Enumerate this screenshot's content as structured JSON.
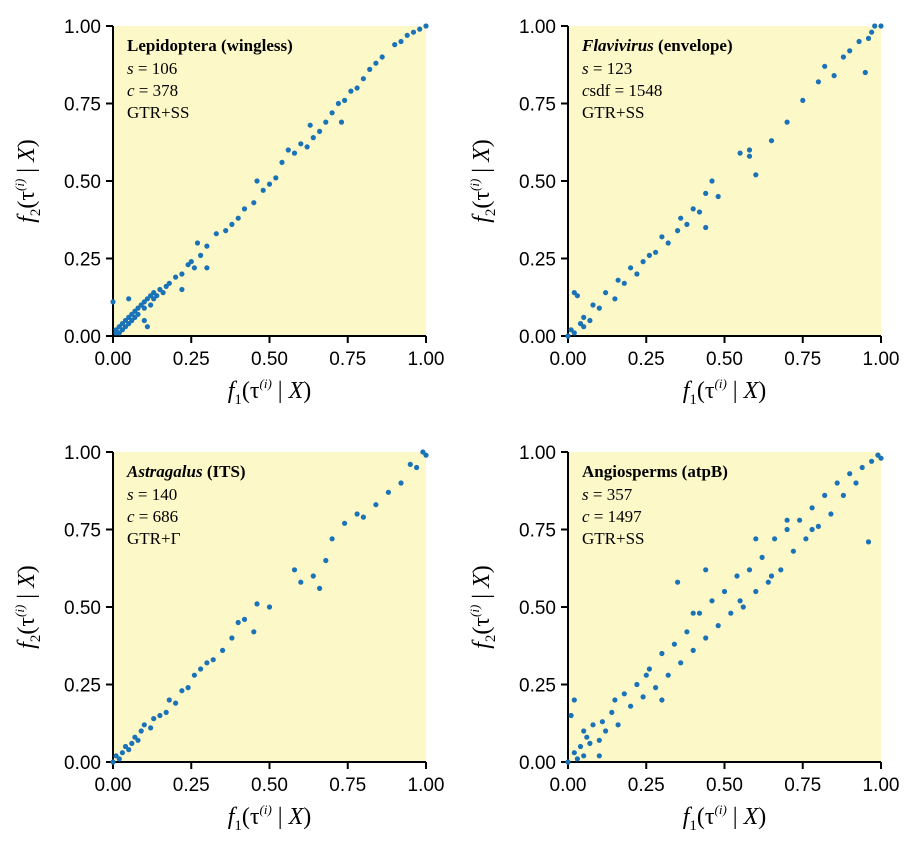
{
  "colors": {
    "panel_bg": "#fcf8c8",
    "points": "#1a73b8",
    "axis": "#000000"
  },
  "chart_data": [
    {
      "type": "scatter",
      "title_main": "Lepidoptera",
      "title_main_italic": false,
      "title_rest": " (wingless)",
      "info_lines": [
        {
          "var": "s",
          "value": " = 106"
        },
        {
          "var": "c",
          "value": " = 378"
        },
        {
          "var": "",
          "value": "GTR+SS"
        }
      ],
      "xlim": [
        0,
        1
      ],
      "ylim": [
        0,
        1
      ],
      "xticks": [
        "0.00",
        "0.25",
        "0.50",
        "0.75",
        "1.00"
      ],
      "yticks": [
        "0.00",
        "0.25",
        "0.50",
        "0.75",
        "1.00"
      ],
      "points": [
        [
          0.0,
          0.11
        ],
        [
          0.01,
          0.01
        ],
        [
          0.01,
          0.02
        ],
        [
          0.02,
          0.01
        ],
        [
          0.02,
          0.03
        ],
        [
          0.03,
          0.02
        ],
        [
          0.03,
          0.04
        ],
        [
          0.04,
          0.03
        ],
        [
          0.04,
          0.05
        ],
        [
          0.05,
          0.04
        ],
        [
          0.05,
          0.06
        ],
        [
          0.06,
          0.05
        ],
        [
          0.06,
          0.07
        ],
        [
          0.07,
          0.06
        ],
        [
          0.07,
          0.08
        ],
        [
          0.08,
          0.07
        ],
        [
          0.08,
          0.09
        ],
        [
          0.09,
          0.1
        ],
        [
          0.1,
          0.09
        ],
        [
          0.1,
          0.11
        ],
        [
          0.11,
          0.12
        ],
        [
          0.12,
          0.1
        ],
        [
          0.12,
          0.13
        ],
        [
          0.13,
          0.12
        ],
        [
          0.13,
          0.14
        ],
        [
          0.14,
          0.13
        ],
        [
          0.15,
          0.15
        ],
        [
          0.16,
          0.14
        ],
        [
          0.17,
          0.16
        ],
        [
          0.18,
          0.17
        ],
        [
          0.2,
          0.19
        ],
        [
          0.22,
          0.2
        ],
        [
          0.24,
          0.23
        ],
        [
          0.25,
          0.24
        ],
        [
          0.26,
          0.22
        ],
        [
          0.27,
          0.3
        ],
        [
          0.28,
          0.26
        ],
        [
          0.3,
          0.29
        ],
        [
          0.33,
          0.33
        ],
        [
          0.36,
          0.34
        ],
        [
          0.38,
          0.36
        ],
        [
          0.4,
          0.38
        ],
        [
          0.42,
          0.41
        ],
        [
          0.45,
          0.43
        ],
        [
          0.48,
          0.47
        ],
        [
          0.5,
          0.49
        ],
        [
          0.52,
          0.51
        ],
        [
          0.54,
          0.56
        ],
        [
          0.56,
          0.6
        ],
        [
          0.58,
          0.59
        ],
        [
          0.6,
          0.62
        ],
        [
          0.62,
          0.61
        ],
        [
          0.64,
          0.64
        ],
        [
          0.66,
          0.66
        ],
        [
          0.68,
          0.69
        ],
        [
          0.7,
          0.72
        ],
        [
          0.72,
          0.75
        ],
        [
          0.74,
          0.76
        ],
        [
          0.76,
          0.79
        ],
        [
          0.78,
          0.8
        ],
        [
          0.8,
          0.83
        ],
        [
          0.82,
          0.86
        ],
        [
          0.84,
          0.88
        ],
        [
          0.86,
          0.9
        ],
        [
          0.9,
          0.94
        ],
        [
          0.92,
          0.95
        ],
        [
          0.94,
          0.97
        ],
        [
          0.96,
          0.98
        ],
        [
          0.98,
          0.99
        ],
        [
          1.0,
          1.0
        ],
        [
          0.1,
          0.05
        ],
        [
          0.11,
          0.03
        ],
        [
          0.05,
          0.12
        ],
        [
          0.22,
          0.15
        ],
        [
          0.3,
          0.22
        ],
        [
          0.46,
          0.5
        ],
        [
          0.63,
          0.68
        ],
        [
          0.73,
          0.69
        ]
      ]
    },
    {
      "type": "scatter",
      "title_main": "Flavivirus",
      "title_main_italic": true,
      "title_rest": " (envelope)",
      "info_lines": [
        {
          "var": "s",
          "value": " = 123"
        },
        {
          "var": "c",
          "value": "sdf = 1548"
        },
        {
          "var": "",
          "value": "GTR+SS"
        }
      ],
      "xlim": [
        0,
        1
      ],
      "ylim": [
        0,
        1
      ],
      "xticks": [
        "0.00",
        "0.25",
        "0.50",
        "0.75",
        "1.00"
      ],
      "yticks": [
        "0.00",
        "0.25",
        "0.50",
        "0.75",
        "1.00"
      ],
      "points": [
        [
          0.0,
          0.0
        ],
        [
          0.01,
          0.02
        ],
        [
          0.02,
          0.01
        ],
        [
          0.02,
          0.14
        ],
        [
          0.03,
          0.13
        ],
        [
          0.04,
          0.04
        ],
        [
          0.05,
          0.03
        ],
        [
          0.05,
          0.06
        ],
        [
          0.07,
          0.05
        ],
        [
          0.08,
          0.1
        ],
        [
          0.1,
          0.09
        ],
        [
          0.12,
          0.14
        ],
        [
          0.15,
          0.12
        ],
        [
          0.16,
          0.18
        ],
        [
          0.18,
          0.17
        ],
        [
          0.2,
          0.22
        ],
        [
          0.22,
          0.2
        ],
        [
          0.24,
          0.24
        ],
        [
          0.26,
          0.26
        ],
        [
          0.28,
          0.27
        ],
        [
          0.3,
          0.32
        ],
        [
          0.32,
          0.3
        ],
        [
          0.35,
          0.34
        ],
        [
          0.38,
          0.36
        ],
        [
          0.4,
          0.41
        ],
        [
          0.42,
          0.4
        ],
        [
          0.44,
          0.46
        ],
        [
          0.46,
          0.5
        ],
        [
          0.48,
          0.45
        ],
        [
          0.55,
          0.59
        ],
        [
          0.58,
          0.6
        ],
        [
          0.6,
          0.52
        ],
        [
          0.65,
          0.63
        ],
        [
          0.7,
          0.69
        ],
        [
          0.75,
          0.76
        ],
        [
          0.8,
          0.82
        ],
        [
          0.82,
          0.87
        ],
        [
          0.85,
          0.84
        ],
        [
          0.88,
          0.9
        ],
        [
          0.9,
          0.92
        ],
        [
          0.93,
          0.95
        ],
        [
          0.95,
          0.85
        ],
        [
          0.97,
          0.98
        ],
        [
          1.0,
          1.0
        ],
        [
          0.98,
          1.0
        ],
        [
          0.96,
          0.96
        ],
        [
          0.44,
          0.35
        ],
        [
          0.36,
          0.38
        ],
        [
          0.58,
          0.58
        ]
      ]
    },
    {
      "type": "scatter",
      "title_main": "Astragalus",
      "title_main_italic": true,
      "title_rest": " (ITS)",
      "info_lines": [
        {
          "var": "s",
          "value": " = 140"
        },
        {
          "var": "c",
          "value": " = 686"
        },
        {
          "var": "",
          "value": "GTR+Γ"
        }
      ],
      "xlim": [
        0,
        1
      ],
      "ylim": [
        0,
        1
      ],
      "xticks": [
        "0.00",
        "0.25",
        "0.50",
        "0.75",
        "1.00"
      ],
      "yticks": [
        "0.00",
        "0.25",
        "0.50",
        "0.75",
        "1.00"
      ],
      "points": [
        [
          0.0,
          0.0
        ],
        [
          0.01,
          0.02
        ],
        [
          0.02,
          0.01
        ],
        [
          0.03,
          0.03
        ],
        [
          0.04,
          0.05
        ],
        [
          0.05,
          0.04
        ],
        [
          0.06,
          0.06
        ],
        [
          0.07,
          0.08
        ],
        [
          0.08,
          0.07
        ],
        [
          0.09,
          0.1
        ],
        [
          0.1,
          0.12
        ],
        [
          0.12,
          0.11
        ],
        [
          0.13,
          0.14
        ],
        [
          0.15,
          0.15
        ],
        [
          0.17,
          0.16
        ],
        [
          0.18,
          0.2
        ],
        [
          0.2,
          0.19
        ],
        [
          0.22,
          0.23
        ],
        [
          0.24,
          0.24
        ],
        [
          0.26,
          0.28
        ],
        [
          0.28,
          0.3
        ],
        [
          0.3,
          0.32
        ],
        [
          0.32,
          0.33
        ],
        [
          0.35,
          0.36
        ],
        [
          0.38,
          0.4
        ],
        [
          0.4,
          0.45
        ],
        [
          0.42,
          0.46
        ],
        [
          0.45,
          0.42
        ],
        [
          0.46,
          0.51
        ],
        [
          0.58,
          0.62
        ],
        [
          0.6,
          0.58
        ],
        [
          0.64,
          0.6
        ],
        [
          0.66,
          0.56
        ],
        [
          0.7,
          0.72
        ],
        [
          0.74,
          0.77
        ],
        [
          0.78,
          0.8
        ],
        [
          0.8,
          0.79
        ],
        [
          0.84,
          0.83
        ],
        [
          0.88,
          0.87
        ],
        [
          0.92,
          0.9
        ],
        [
          0.95,
          0.96
        ],
        [
          0.97,
          0.95
        ],
        [
          1.0,
          0.99
        ],
        [
          0.99,
          1.0
        ],
        [
          0.5,
          0.5
        ],
        [
          0.68,
          0.65
        ]
      ]
    },
    {
      "type": "scatter",
      "title_main": "Angiosperms",
      "title_main_italic": false,
      "title_rest": " (atpB)",
      "info_lines": [
        {
          "var": "s",
          "value": " = 357"
        },
        {
          "var": "c",
          "value": " = 1497"
        },
        {
          "var": "",
          "value": "GTR+SS"
        }
      ],
      "xlim": [
        0,
        1
      ],
      "ylim": [
        0,
        1
      ],
      "xticks": [
        "0.00",
        "0.25",
        "0.50",
        "0.75",
        "1.00"
      ],
      "yticks": [
        "0.00",
        "0.25",
        "0.50",
        "0.75",
        "1.00"
      ],
      "points": [
        [
          0.0,
          0.0
        ],
        [
          0.01,
          0.15
        ],
        [
          0.02,
          0.03
        ],
        [
          0.03,
          0.01
        ],
        [
          0.04,
          0.05
        ],
        [
          0.05,
          0.02
        ],
        [
          0.06,
          0.08
        ],
        [
          0.07,
          0.06
        ],
        [
          0.08,
          0.12
        ],
        [
          0.1,
          0.07
        ],
        [
          0.11,
          0.13
        ],
        [
          0.12,
          0.1
        ],
        [
          0.14,
          0.16
        ],
        [
          0.16,
          0.12
        ],
        [
          0.18,
          0.22
        ],
        [
          0.2,
          0.18
        ],
        [
          0.22,
          0.25
        ],
        [
          0.24,
          0.21
        ],
        [
          0.26,
          0.3
        ],
        [
          0.28,
          0.24
        ],
        [
          0.3,
          0.35
        ],
        [
          0.32,
          0.28
        ],
        [
          0.34,
          0.38
        ],
        [
          0.36,
          0.32
        ],
        [
          0.38,
          0.42
        ],
        [
          0.4,
          0.36
        ],
        [
          0.42,
          0.48
        ],
        [
          0.44,
          0.4
        ],
        [
          0.46,
          0.52
        ],
        [
          0.48,
          0.44
        ],
        [
          0.5,
          0.55
        ],
        [
          0.52,
          0.48
        ],
        [
          0.54,
          0.6
        ],
        [
          0.56,
          0.5
        ],
        [
          0.58,
          0.62
        ],
        [
          0.6,
          0.55
        ],
        [
          0.62,
          0.66
        ],
        [
          0.64,
          0.58
        ],
        [
          0.66,
          0.72
        ],
        [
          0.68,
          0.62
        ],
        [
          0.7,
          0.75
        ],
        [
          0.72,
          0.68
        ],
        [
          0.74,
          0.78
        ],
        [
          0.76,
          0.72
        ],
        [
          0.78,
          0.82
        ],
        [
          0.8,
          0.76
        ],
        [
          0.82,
          0.86
        ],
        [
          0.84,
          0.8
        ],
        [
          0.86,
          0.9
        ],
        [
          0.88,
          0.86
        ],
        [
          0.9,
          0.93
        ],
        [
          0.92,
          0.9
        ],
        [
          0.94,
          0.95
        ],
        [
          0.96,
          0.71
        ],
        [
          0.97,
          0.97
        ],
        [
          0.99,
          0.99
        ],
        [
          1.0,
          0.98
        ],
        [
          0.35,
          0.58
        ],
        [
          0.44,
          0.62
        ],
        [
          0.25,
          0.28
        ],
        [
          0.15,
          0.2
        ],
        [
          0.6,
          0.72
        ],
        [
          0.7,
          0.78
        ],
        [
          0.55,
          0.52
        ],
        [
          0.3,
          0.2
        ],
        [
          0.02,
          0.2
        ],
        [
          0.1,
          0.02
        ],
        [
          0.05,
          0.1
        ],
        [
          0.4,
          0.48
        ],
        [
          0.65,
          0.6
        ],
        [
          0.78,
          0.75
        ]
      ]
    }
  ],
  "axis_labels": {
    "x_f": "f",
    "x_sub": "1",
    "x_open": "(τ",
    "x_sup": "(i)",
    "x_bar": " | ",
    "x_var": "X",
    "x_close": ")",
    "y_f": "f",
    "y_sub": "2",
    "y_open": "(τ",
    "y_sup": "(i)",
    "y_bar": " | ",
    "y_var": "X",
    "y_close": ")"
  }
}
